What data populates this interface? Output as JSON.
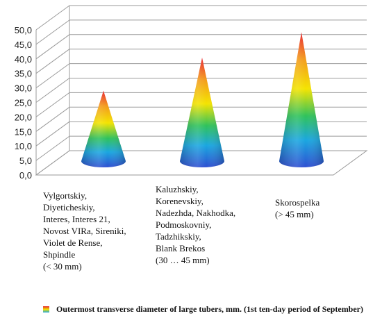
{
  "chart_data": {
    "type": "bar",
    "style": "3d-cone",
    "categories": [
      "Vylgortskiy,\nDiyeticheskiy,\nInteres, Interes 21,\nNovost VIRa, Sireniki,\nViolet de Rense,\nShpindle\n(< 30 mm)",
      "Kaluzhskiy,\nKorenevskiy,\nNadezhda, Nakhodka,\nPodmoskovniy,\nTadzhikskiy,\nBlank Brekos\n(30 … 45 mm)",
      "Skorospelka\n(> 45 mm)"
    ],
    "series": [
      {
        "name": "Outermost transverse diameter of large tubers, mm. (1st ten-day period of September)",
        "values": [
          25.8,
          37.2,
          46.0
        ]
      }
    ],
    "ylim": [
      0,
      50
    ],
    "ytick_labels": [
      "0,0",
      "5,0",
      "10,0",
      "15,0",
      "20,0",
      "25,0",
      "30,0",
      "35,0",
      "40,0",
      "45,0",
      "50,0"
    ],
    "grid": true,
    "legend_position": "bottom",
    "colors": {
      "gradient": [
        "#e8212a",
        "#f39b1c",
        "#f4e400",
        "#2fc25b",
        "#1aa6e0",
        "#2e4fd1"
      ],
      "gridline": "#9a9a9a"
    }
  }
}
